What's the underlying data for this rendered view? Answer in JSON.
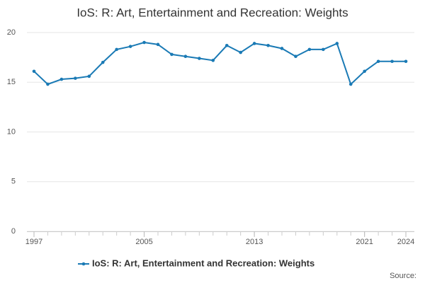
{
  "chart_data": {
    "type": "line",
    "title": "IoS: R: Art, Entertainment and Recreation: Weights",
    "x": [
      1997,
      1998,
      1999,
      2000,
      2001,
      2002,
      2003,
      2004,
      2005,
      2006,
      2007,
      2008,
      2009,
      2010,
      2011,
      2012,
      2013,
      2014,
      2015,
      2016,
      2017,
      2018,
      2019,
      2020,
      2021,
      2022,
      2023,
      2024
    ],
    "series": [
      {
        "name": "IoS: R: Art, Entertainment and Recreation: Weights",
        "color": "#1a7ab5",
        "values": [
          16.1,
          14.8,
          15.3,
          15.4,
          15.6,
          17.0,
          18.3,
          18.6,
          19.0,
          18.8,
          17.8,
          17.6,
          17.4,
          17.2,
          18.7,
          18.0,
          18.9,
          18.7,
          18.4,
          17.6,
          18.3,
          18.3,
          18.9,
          14.8,
          16.1,
          17.1,
          17.1,
          17.1
        ]
      }
    ],
    "xlim": [
      1997,
      2024
    ],
    "xticks": [
      1997,
      2005,
      2013,
      2021,
      2024
    ],
    "ylim": [
      0,
      20
    ],
    "yticks": [
      0,
      5,
      10,
      15,
      20
    ],
    "grid": true,
    "source": "Source:"
  }
}
